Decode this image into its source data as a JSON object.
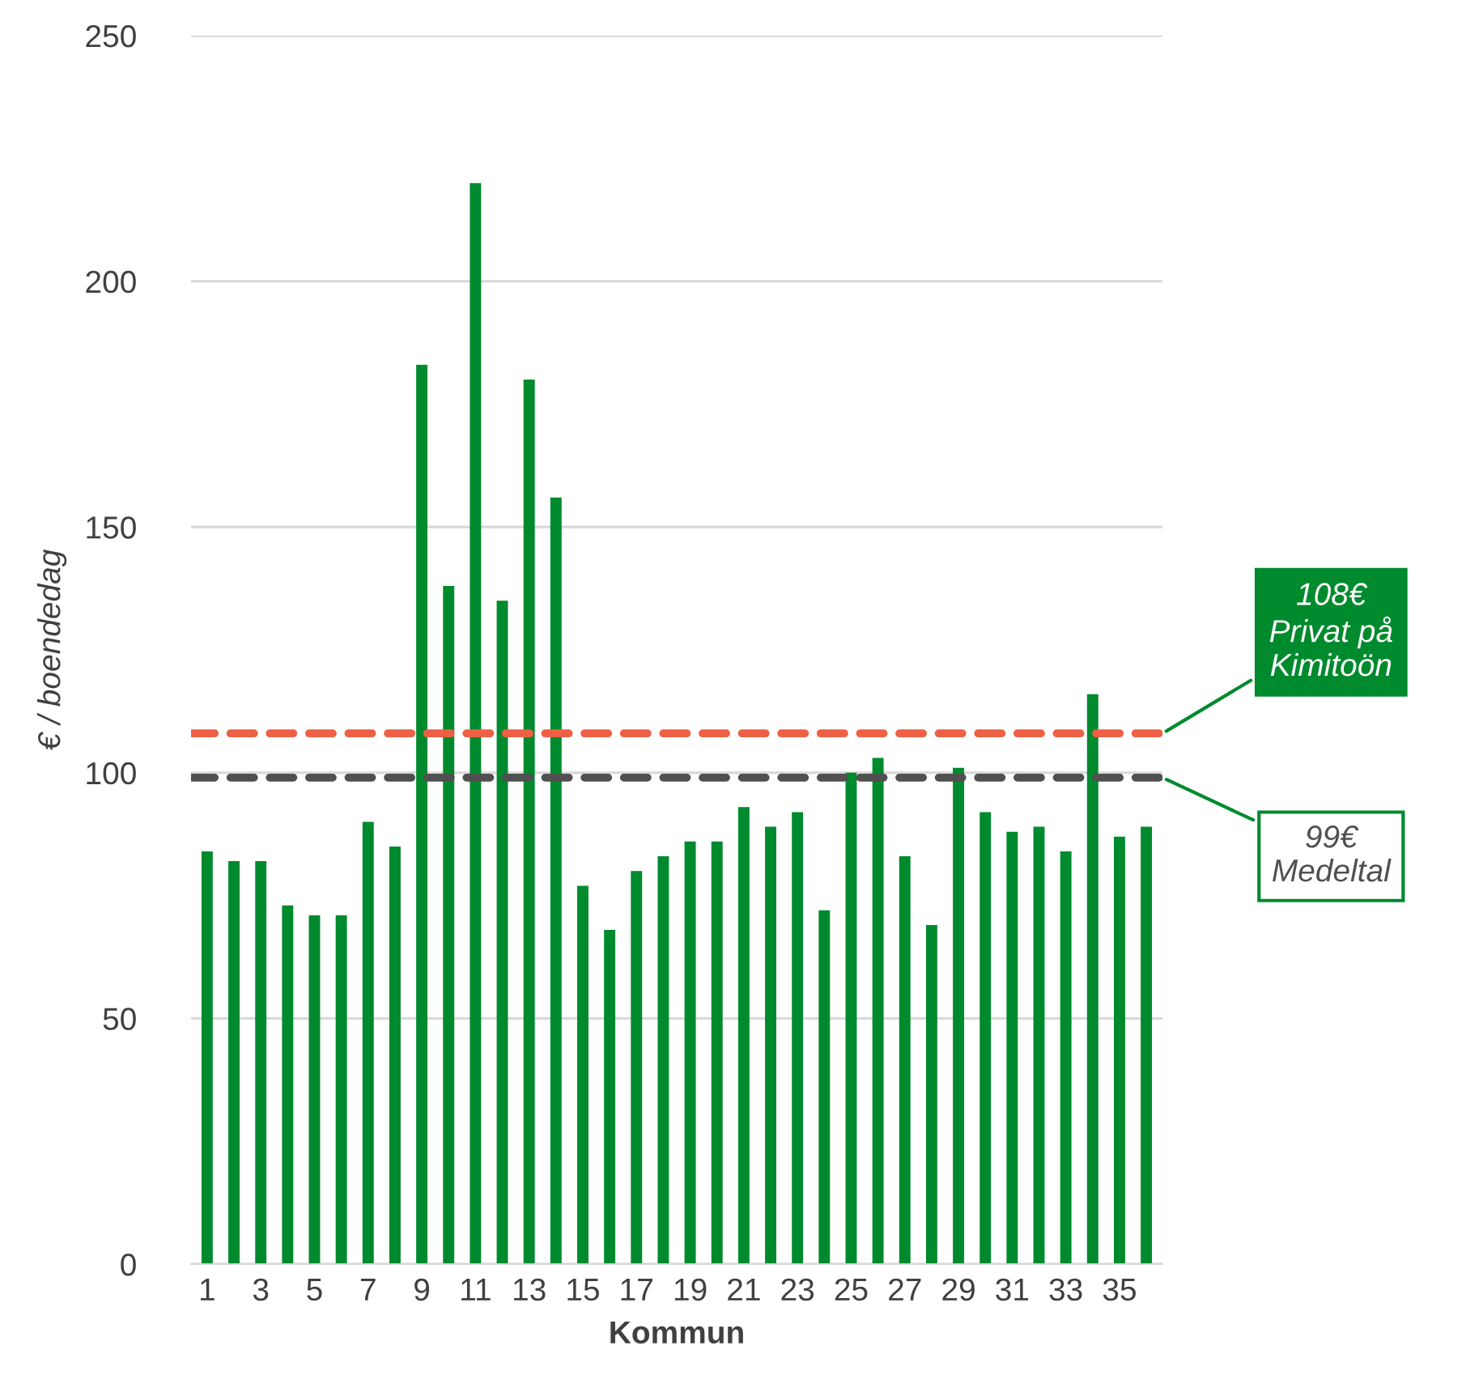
{
  "chart_data": {
    "type": "bar",
    "xlabel": "Kommun",
    "ylabel": "€ / boendedag",
    "categories": [
      "1",
      null,
      "3",
      null,
      "5",
      null,
      "7",
      null,
      "9",
      null,
      "11",
      null,
      "13",
      null,
      "15",
      null,
      "17",
      null,
      "19",
      null,
      "21",
      null,
      "23",
      null,
      "25",
      null,
      "27",
      null,
      "29",
      null,
      "31",
      null,
      "33",
      null,
      "35",
      null
    ],
    "values": [
      84,
      82,
      82,
      73,
      71,
      71,
      90,
      85,
      183,
      138,
      220,
      135,
      180,
      156,
      77,
      68,
      80,
      83,
      86,
      86,
      93,
      89,
      92,
      72,
      100,
      103,
      83,
      69,
      101,
      92,
      88,
      89,
      84,
      116,
      87,
      89
    ],
    "color": "#008a2e",
    "ylim": [
      0,
      250
    ],
    "yticks": [
      0,
      50,
      100,
      150,
      200,
      250
    ],
    "grid": "y",
    "ref_lines": [
      {
        "axis": "y",
        "value": 108,
        "label": "108€\nPrivat på\nKimitoön",
        "color": "#ee6045",
        "line_style": "dashed"
      },
      {
        "axis": "y",
        "value": 99,
        "label": "99€\nMedeltal",
        "color": "#505050",
        "line_style": "dashed"
      }
    ]
  }
}
